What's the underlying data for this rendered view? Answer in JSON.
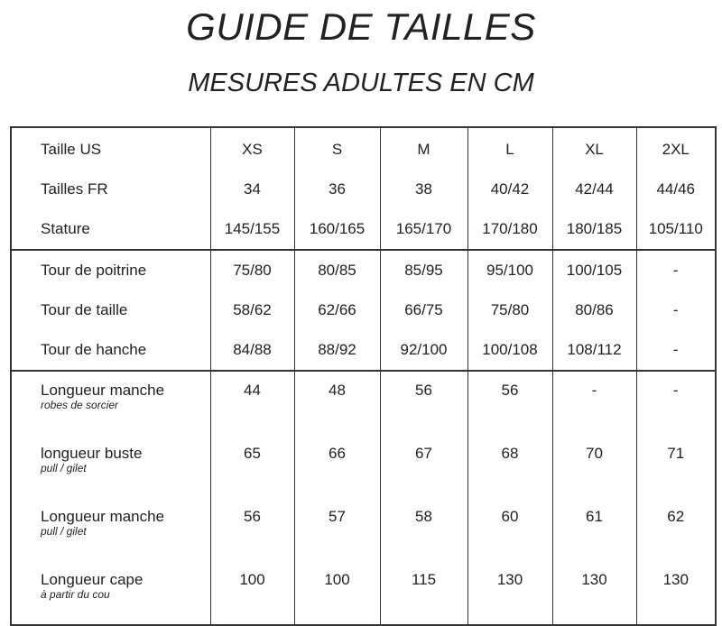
{
  "title": "GUIDE DE TAILLES",
  "subtitle": "MESURES ADULTES EN CM",
  "table": {
    "groups": [
      {
        "rows": [
          {
            "label": "Taille US",
            "values": [
              "XS",
              "S",
              "M",
              "L",
              "XL",
              "2XL"
            ]
          },
          {
            "label": "Tailles FR",
            "values": [
              "34",
              "36",
              "38",
              "40/42",
              "42/44",
              "44/46"
            ]
          },
          {
            "label": "Stature",
            "values": [
              "145/155",
              "160/165",
              "165/170",
              "170/180",
              "180/185",
              "105/110"
            ]
          }
        ]
      },
      {
        "rows": [
          {
            "label": "Tour de poitrine",
            "values": [
              "75/80",
              "80/85",
              "85/95",
              "95/100",
              "100/105",
              "-"
            ]
          },
          {
            "label": "Tour de taille",
            "values": [
              "58/62",
              "62/66",
              "66/75",
              "75/80",
              "80/86",
              "-"
            ]
          },
          {
            "label": "Tour de hanche",
            "values": [
              "84/88",
              "88/92",
              "92/100",
              "100/108",
              "108/112",
              "-"
            ]
          }
        ]
      },
      {
        "rows": [
          {
            "label": "Longueur manche",
            "note": "robes de sorcier",
            "values": [
              "44",
              "48",
              "56",
              "56",
              "-",
              "-"
            ]
          },
          {
            "label": "longueur buste",
            "note": "pull / gilet",
            "values": [
              "65",
              "66",
              "67",
              "68",
              "70",
              "71"
            ]
          },
          {
            "label": "Longueur manche",
            "note": "pull / gilet",
            "values": [
              "56",
              "57",
              "58",
              "60",
              "61",
              "62"
            ]
          },
          {
            "label": "Longueur cape",
            "note": "à partir du cou",
            "values": [
              "100",
              "100",
              "115",
              "130",
              "130",
              "130"
            ]
          }
        ]
      }
    ]
  }
}
